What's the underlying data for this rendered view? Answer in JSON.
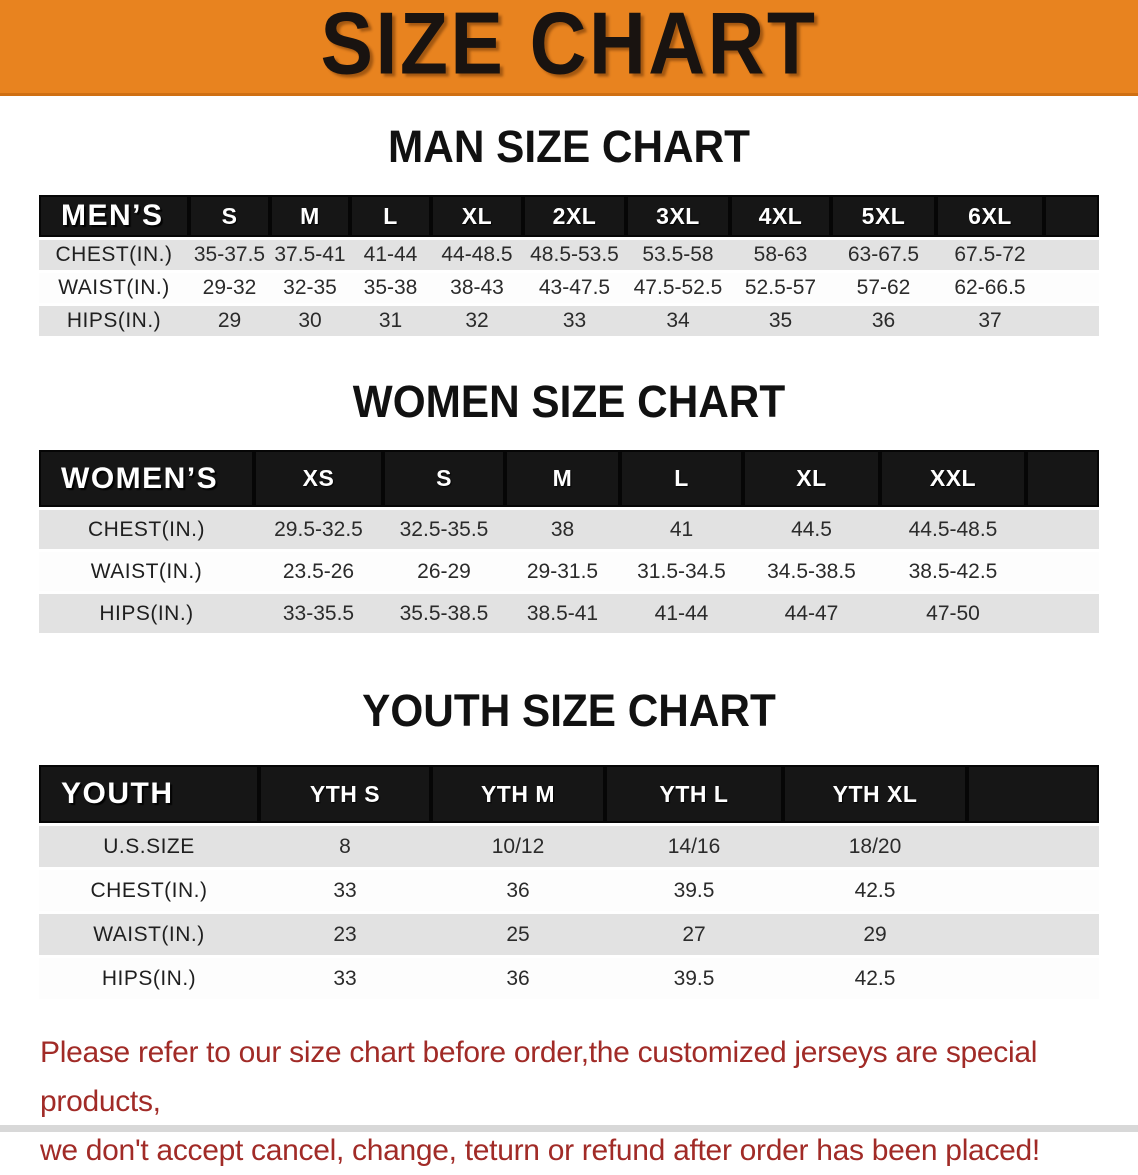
{
  "banner": {
    "title": "SIZE CHART"
  },
  "sections": [
    {
      "title": "MAN SIZE CHART",
      "table": {
        "group_label": "MEN’S",
        "sizes": [
          "S",
          "M",
          "L",
          "XL",
          "2XL",
          "3XL",
          "4XL",
          "5XL",
          "6XL"
        ],
        "rows": [
          {
            "label": "CHEST(IN.)",
            "values": [
              "35-37.5",
              "37.5-41",
              "41-44",
              "44-48.5",
              "48.5-53.5",
              "53.5-58",
              "58-63",
              "63-67.5",
              "67.5-72"
            ]
          },
          {
            "label": "WAIST(IN.)",
            "values": [
              "29-32",
              "32-35",
              "35-38",
              "38-43",
              "43-47.5",
              "47.5-52.5",
              "52.5-57",
              "57-62",
              "62-66.5"
            ]
          },
          {
            "label": "HIPS(IN.)",
            "values": [
              "29",
              "30",
              "31",
              "32",
              "33",
              "34",
              "35",
              "36",
              "37"
            ]
          }
        ]
      }
    },
    {
      "title": "WOMEN SIZE CHART",
      "table": {
        "group_label": "WOMEN’S",
        "sizes": [
          "XS",
          "S",
          "M",
          "L",
          "XL",
          "XXL"
        ],
        "rows": [
          {
            "label": "CHEST(IN.)",
            "values": [
              "29.5-32.5",
              "32.5-35.5",
              "38",
              "41",
              "44.5",
              "44.5-48.5"
            ]
          },
          {
            "label": "WAIST(IN.)",
            "values": [
              "23.5-26",
              "26-29",
              "29-31.5",
              "31.5-34.5",
              "34.5-38.5",
              "38.5-42.5"
            ]
          },
          {
            "label": "HIPS(IN.)",
            "values": [
              "33-35.5",
              "35.5-38.5",
              "38.5-41",
              "41-44",
              "44-47",
              "47-50"
            ]
          }
        ]
      }
    },
    {
      "title": "YOUTH SIZE CHART",
      "table": {
        "group_label": "YOUTH",
        "sizes": [
          "YTH S",
          "YTH M",
          "YTH L",
          "YTH XL"
        ],
        "rows": [
          {
            "label": "U.S.SIZE",
            "values": [
              "8",
              "10/12",
              "14/16",
              "18/20"
            ]
          },
          {
            "label": "CHEST(IN.)",
            "values": [
              "33",
              "36",
              "39.5",
              "42.5"
            ]
          },
          {
            "label": "WAIST(IN.)",
            "values": [
              "23",
              "25",
              "27",
              "29"
            ]
          },
          {
            "label": "HIPS(IN.)",
            "values": [
              "33",
              "36",
              "39.5",
              "42.5"
            ]
          }
        ]
      }
    }
  ],
  "footer": {
    "line1": "Please refer to our size chart before order,the customized jerseys are special products,",
    "line2": "we don't accept cancel, change, teturn or refund after order has been placed!"
  },
  "colors": {
    "banner_orange": "#e8831f",
    "table_header_black": "#161616",
    "row_gray": "#e2e2e2",
    "footer_red": "#a12b27"
  }
}
